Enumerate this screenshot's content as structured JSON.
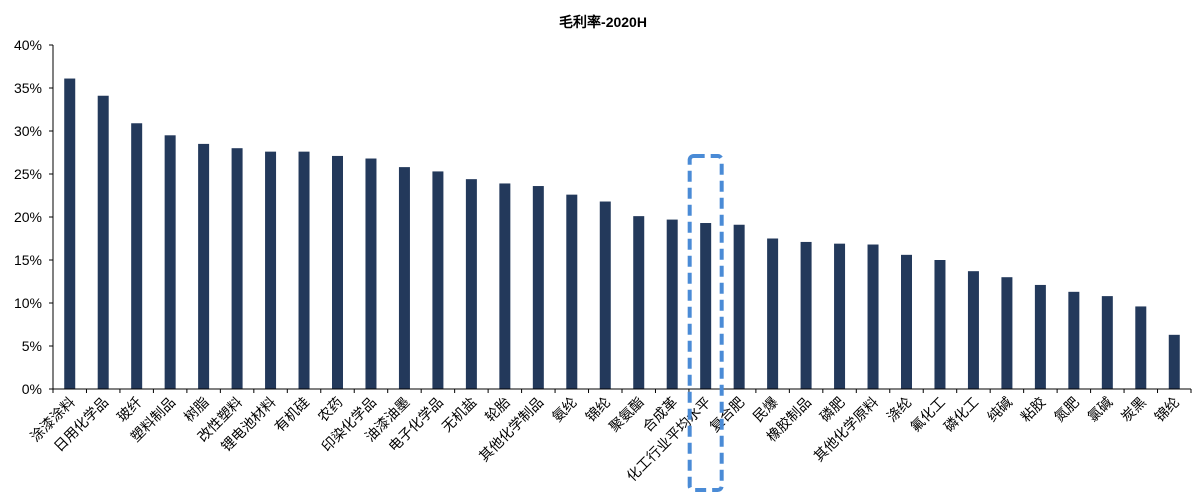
{
  "chart_data": {
    "type": "bar",
    "title": "毛利率-2020H",
    "xlabel": "",
    "ylabel": "",
    "ylim": [
      0,
      40
    ],
    "yticks": [
      "0%",
      "5%",
      "10%",
      "15%",
      "20%",
      "25%",
      "30%",
      "35%",
      "40%"
    ],
    "grid": false,
    "legend": "none",
    "bar_color": "#23395B",
    "highlight_color": "#4A8BD6",
    "highlight_category": "化工行业平均水平",
    "categories": [
      "涂漆涂料",
      "日用化学品",
      "玻纤",
      "塑料制品",
      "树脂",
      "改性塑料",
      "锂电池材料",
      "有机硅",
      "农药",
      "印染化学品",
      "油漆油墨",
      "电子化学品",
      "无机盐",
      "轮胎",
      "其他化学制品",
      "氨纶",
      "锦纶",
      "聚氨酯",
      "合成革",
      "化工行业平均水平",
      "复合肥",
      "民爆",
      "橡胶制品",
      "磷肥",
      "其他化学原料",
      "涤纶",
      "氟化工",
      "磷化工",
      "纯碱",
      "粘胶",
      "氮肥",
      "氯碱",
      "炭黑",
      "锦纶"
    ],
    "values": [
      36.1,
      34.1,
      30.9,
      29.5,
      28.5,
      28.0,
      27.6,
      27.6,
      27.1,
      26.8,
      25.8,
      25.3,
      24.4,
      23.9,
      23.6,
      22.6,
      21.8,
      20.1,
      19.7,
      19.3,
      19.1,
      17.5,
      17.1,
      16.9,
      16.8,
      15.6,
      15.0,
      13.7,
      13.0,
      12.1,
      11.3,
      10.8,
      9.6,
      6.3
    ]
  }
}
